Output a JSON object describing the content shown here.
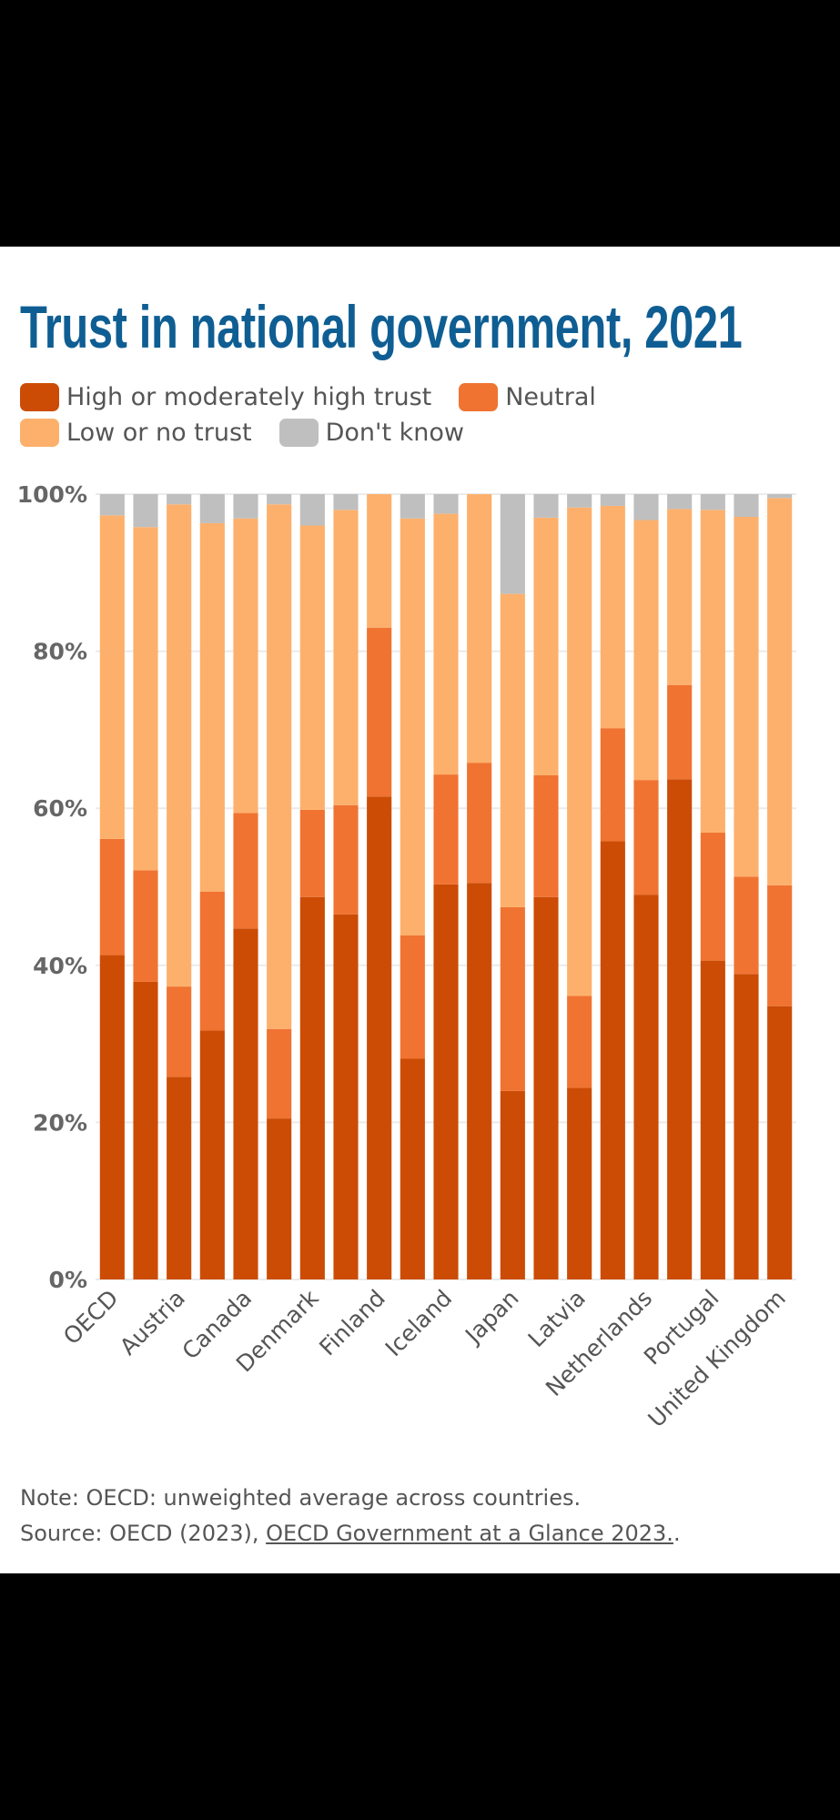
{
  "chart_data": {
    "type": "bar",
    "stacked": true,
    "title": "Trust in national government, 2021",
    "categories": [
      "OECD",
      "",
      "Austria",
      "",
      "Canada",
      "",
      "Denmark",
      "",
      "Finland",
      "",
      "Iceland",
      "",
      "Japan",
      "",
      "Latvia",
      "",
      "Netherlands",
      "",
      "Portugal",
      "",
      "United Kingdom"
    ],
    "series": [
      {
        "name": "High or moderately high trust",
        "color": "#cc4c05",
        "values": [
          41.3,
          37.9,
          25.8,
          31.7,
          44.7,
          20.5,
          48.7,
          46.5,
          61.5,
          28.1,
          50.3,
          50.5,
          24.0,
          48.7,
          24.4,
          55.8,
          49.0,
          63.7,
          40.6,
          38.9,
          34.8
        ]
      },
      {
        "name": "Neutral",
        "color": "#f07331",
        "values": [
          14.8,
          14.2,
          11.5,
          17.7,
          14.7,
          11.4,
          11.1,
          13.9,
          21.5,
          15.7,
          14.0,
          15.3,
          23.4,
          15.5,
          11.7,
          14.4,
          14.6,
          12.0,
          16.3,
          12.4,
          15.4
        ]
      },
      {
        "name": "Low or no trust",
        "color": "#fdb06c",
        "values": [
          41.2,
          43.7,
          61.4,
          46.9,
          37.5,
          66.8,
          36.2,
          37.6,
          17.0,
          53.1,
          33.2,
          34.2,
          39.9,
          32.8,
          62.2,
          28.3,
          33.1,
          22.4,
          41.1,
          45.8,
          49.3
        ]
      },
      {
        "name": "Don't know",
        "color": "#bfbfbf",
        "values": [
          2.7,
          4.2,
          1.3,
          3.7,
          3.1,
          1.3,
          4.0,
          2.0,
          0.0,
          3.1,
          2.5,
          0.0,
          12.7,
          3.0,
          1.7,
          1.5,
          3.3,
          1.9,
          2.0,
          2.9,
          0.5
        ]
      }
    ],
    "ylim": [
      0,
      100
    ],
    "yticks": [
      "0%",
      "20%",
      "40%",
      "60%",
      "80%",
      "100%"
    ],
    "xlabel": "",
    "ylabel": "",
    "grid": true,
    "legend_placement": "top-left"
  },
  "legend": [
    "High or moderately high trust",
    "Neutral",
    "Low or no trust",
    "Don't know"
  ],
  "footer": {
    "note": "Note: OECD: unweighted average across countries.",
    "source_prefix": "Source: OECD (2023), ",
    "source_link": "OECD Government at a Glance 2023.",
    "source_suffix": "."
  }
}
